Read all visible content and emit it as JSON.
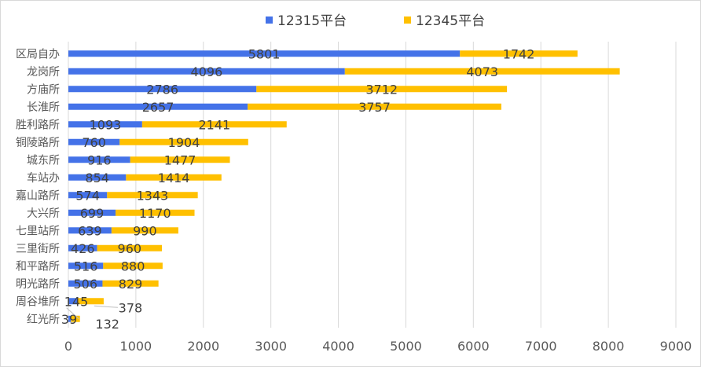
{
  "chart_data": {
    "type": "bar",
    "orientation": "horizontal",
    "stacked": true,
    "title": "",
    "xlabel": "",
    "ylabel": "",
    "xlim": [
      0,
      9000
    ],
    "xticks": [
      0,
      1000,
      2000,
      3000,
      4000,
      5000,
      6000,
      7000,
      8000,
      9000
    ],
    "grid": "vertical",
    "legend_position": "top",
    "categories": [
      "区局自办",
      "龙岗所",
      "方庙所",
      "长淮所",
      "胜利路所",
      "铜陵路所",
      "城东所",
      "车站办",
      "嘉山路所",
      "大兴所",
      "七里站所",
      "三里街所",
      "和平路所",
      "明光路所",
      "周谷堆所",
      "红光所"
    ],
    "series": [
      {
        "name": "12315平台",
        "color": "#4472e8",
        "values": [
          5801,
          4096,
          2786,
          2657,
          1093,
          760,
          916,
          854,
          574,
          699,
          639,
          426,
          516,
          506,
          145,
          39
        ]
      },
      {
        "name": "12345平台",
        "color": "#ffc000",
        "values": [
          1742,
          4073,
          3712,
          3757,
          2141,
          1904,
          1477,
          1414,
          1343,
          1170,
          990,
          960,
          880,
          829,
          378,
          132
        ]
      }
    ]
  }
}
